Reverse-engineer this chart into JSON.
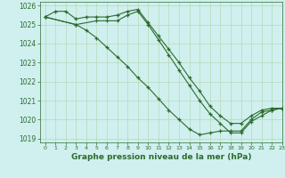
{
  "title": "Graphe pression niveau de la mer (hPa)",
  "bg_color": "#cff0ee",
  "grid_color": "#b8d8b8",
  "line_color": "#2d6a2d",
  "xlim": [
    -0.5,
    23
  ],
  "ylim": [
    1018.8,
    1026.2
  ],
  "yticks": [
    1019,
    1020,
    1021,
    1022,
    1023,
    1024,
    1025,
    1026
  ],
  "xticks": [
    0,
    1,
    2,
    3,
    4,
    5,
    6,
    7,
    8,
    9,
    10,
    11,
    12,
    13,
    14,
    15,
    16,
    17,
    18,
    19,
    20,
    21,
    22,
    23
  ],
  "series": [
    {
      "x": [
        0,
        1,
        2,
        3,
        4,
        5,
        6,
        7,
        8,
        9,
        10,
        11,
        12,
        13,
        14,
        15,
        16,
        17,
        18,
        19,
        20,
        21,
        22,
        23
      ],
      "y": [
        1025.4,
        1025.7,
        1025.7,
        1025.3,
        1025.4,
        1025.4,
        1025.4,
        1025.5,
        1025.7,
        1025.8,
        1025.1,
        1024.4,
        1023.7,
        1023.0,
        1022.2,
        1021.5,
        1020.7,
        1020.2,
        1019.8,
        1019.8,
        1020.2,
        1020.5,
        1020.6,
        1020.6
      ]
    },
    {
      "x": [
        0,
        3,
        5,
        6,
        7,
        8,
        9,
        10,
        11,
        12,
        13,
        14,
        15,
        16,
        17,
        18,
        19,
        20,
        21,
        22,
        23
      ],
      "y": [
        1025.4,
        1025.0,
        1025.2,
        1025.2,
        1025.2,
        1025.5,
        1025.7,
        1025.0,
        1024.2,
        1023.4,
        1022.6,
        1021.8,
        1021.0,
        1020.3,
        1019.8,
        1019.3,
        1019.3,
        1019.9,
        1020.2,
        1020.5,
        1020.6
      ]
    },
    {
      "x": [
        0,
        3,
        4,
        5,
        6,
        7,
        8,
        9,
        10,
        11,
        12,
        13,
        14,
        15,
        16,
        17,
        18,
        19,
        20,
        21,
        22,
        23
      ],
      "y": [
        1025.4,
        1025.0,
        1024.7,
        1024.3,
        1023.8,
        1023.3,
        1022.8,
        1022.2,
        1021.7,
        1021.1,
        1020.5,
        1020.0,
        1019.5,
        1019.2,
        1019.3,
        1019.4,
        1019.4,
        1019.4,
        1020.0,
        1020.4,
        1020.5,
        1020.6
      ]
    }
  ]
}
